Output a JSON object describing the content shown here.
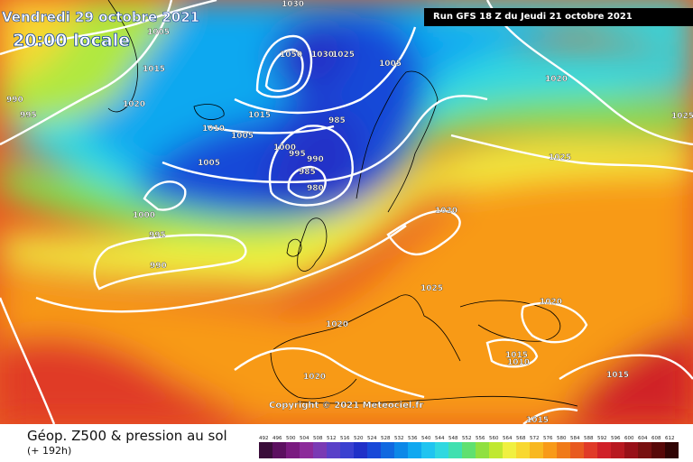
{
  "header": {
    "date": "Vendredi 29 octobre 2021",
    "time": "20:00 locale",
    "run": "Run GFS 18 Z du Jeudi 21 octobre 2021"
  },
  "footer": {
    "param": "Géop. Z500 & pression au sol",
    "lead": "(+ 192h)",
    "copyright": "Copyright © 2021 Meteociel.fr"
  },
  "legend": {
    "scale_labels": [
      "492",
      "496",
      "500",
      "504",
      "508",
      "512",
      "516",
      "520",
      "524",
      "528",
      "532",
      "536",
      "540",
      "544",
      "548",
      "552",
      "556",
      "560",
      "564",
      "568",
      "572",
      "576",
      "580",
      "584",
      "588",
      "592",
      "596",
      "600",
      "604",
      "608",
      "612"
    ],
    "scale_colors": [
      "#3a0d3a",
      "#5c1060",
      "#7a1a80",
      "#8c2a9a",
      "#7a3ab4",
      "#5a40c8",
      "#3a40d0",
      "#2030c8",
      "#1848d8",
      "#1068e0",
      "#0c88e8",
      "#10a8f0",
      "#20c4f0",
      "#30d8e0",
      "#40e0b0",
      "#60e070",
      "#90e040",
      "#c0e830",
      "#f0f040",
      "#f8d830",
      "#f8b820",
      "#f89a18",
      "#f07a18",
      "#e85a20",
      "#e03a28",
      "#d02028",
      "#b81820",
      "#981018",
      "#781010",
      "#580808",
      "#300404"
    ]
  },
  "isobar_labels": [
    "1030",
    "1005",
    "1015",
    "990",
    "995",
    "1020",
    "1010",
    "1050",
    "1030",
    "1025",
    "1005",
    "1020",
    "1025",
    "1015",
    "1005",
    "985",
    "1000",
    "995",
    "990",
    "985",
    "980",
    "1005",
    "1025",
    "1000",
    "995",
    "990",
    "1020",
    "1025",
    "1020",
    "1020",
    "1015",
    "1020",
    "1015",
    "1015",
    "1010"
  ],
  "colors": {
    "isobar": "#ffffff",
    "coast": "#000000",
    "run_box_bg": "#000000"
  }
}
